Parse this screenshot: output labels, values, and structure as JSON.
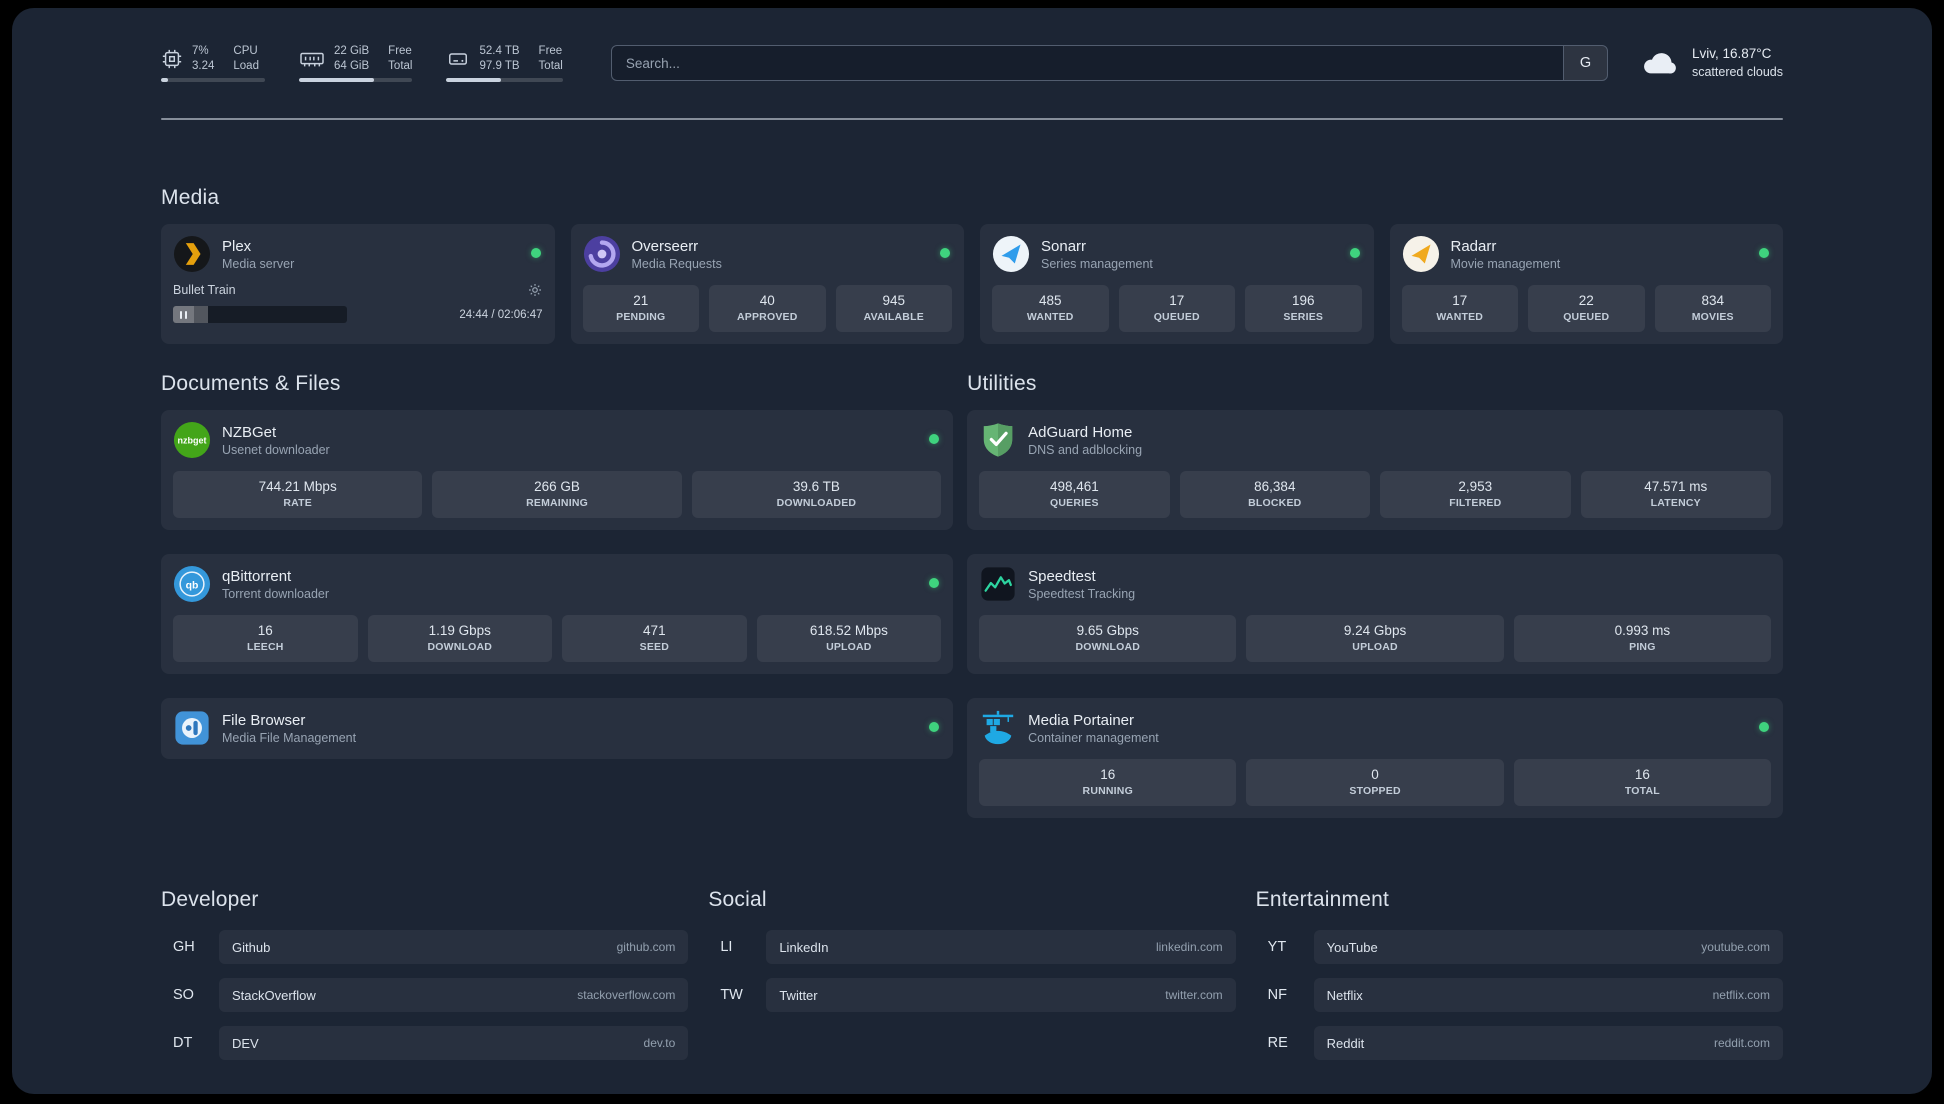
{
  "topbar": {
    "resources": [
      {
        "icon": "cpu-icon",
        "value_top": "7%",
        "value_bottom": "3.24",
        "label_top": "CPU",
        "label_bottom": "Load",
        "progress_pct": 7
      },
      {
        "icon": "memory-icon",
        "value_top": "22 GiB",
        "value_bottom": "64 GiB",
        "label_top": "Free",
        "label_bottom": "Total",
        "progress_pct": 66
      },
      {
        "icon": "disk-icon",
        "value_top": "52.4 TB",
        "value_bottom": "97.9 TB",
        "label_top": "Free",
        "label_bottom": "Total",
        "progress_pct": 47
      }
    ],
    "search": {
      "placeholder": "Search...",
      "provider_label": "G"
    },
    "weather": {
      "location": "Lviv, 16.87°C",
      "condition": "scattered clouds"
    }
  },
  "sections": {
    "media": {
      "title": "Media",
      "cards": [
        {
          "name": "Plex",
          "subtitle": "Media server",
          "status": "online",
          "player": {
            "track": "Bullet Train",
            "time": "24:44 / 02:06:47",
            "progress_pct": 20
          }
        },
        {
          "name": "Overseerr",
          "subtitle": "Media Requests",
          "status": "online",
          "stats": [
            {
              "value": "21",
              "label": "PENDING"
            },
            {
              "value": "40",
              "label": "APPROVED"
            },
            {
              "value": "945",
              "label": "AVAILABLE"
            }
          ]
        },
        {
          "name": "Sonarr",
          "subtitle": "Series management",
          "status": "online",
          "stats": [
            {
              "value": "485",
              "label": "WANTED"
            },
            {
              "value": "17",
              "label": "QUEUED"
            },
            {
              "value": "196",
              "label": "SERIES"
            }
          ]
        },
        {
          "name": "Radarr",
          "subtitle": "Movie management",
          "status": "online",
          "stats": [
            {
              "value": "17",
              "label": "WANTED"
            },
            {
              "value": "22",
              "label": "QUEUED"
            },
            {
              "value": "834",
              "label": "MOVIES"
            }
          ]
        }
      ]
    },
    "documents": {
      "title": "Documents & Files",
      "cards": [
        {
          "name": "NZBGet",
          "subtitle": "Usenet downloader",
          "status": "online",
          "stats": [
            {
              "value": "744.21 Mbps",
              "label": "RATE"
            },
            {
              "value": "266 GB",
              "label": "REMAINING"
            },
            {
              "value": "39.6 TB",
              "label": "DOWNLOADED"
            }
          ]
        },
        {
          "name": "qBittorrent",
          "subtitle": "Torrent downloader",
          "status": "online",
          "stats": [
            {
              "value": "16",
              "label": "LEECH"
            },
            {
              "value": "1.19 Gbps",
              "label": "DOWNLOAD"
            },
            {
              "value": "471",
              "label": "SEED"
            },
            {
              "value": "618.52 Mbps",
              "label": "UPLOAD"
            }
          ]
        },
        {
          "name": "File Browser",
          "subtitle": "Media File Management",
          "status": "online"
        }
      ]
    },
    "utilities": {
      "title": "Utilities",
      "cards": [
        {
          "name": "AdGuard Home",
          "subtitle": "DNS and adblocking",
          "stats": [
            {
              "value": "498,461",
              "label": "QUERIES"
            },
            {
              "value": "86,384",
              "label": "BLOCKED"
            },
            {
              "value": "2,953",
              "label": "FILTERED"
            },
            {
              "value": "47.571 ms",
              "label": "LATENCY"
            }
          ]
        },
        {
          "name": "Speedtest",
          "subtitle": "Speedtest Tracking",
          "stats": [
            {
              "value": "9.65 Gbps",
              "label": "DOWNLOAD"
            },
            {
              "value": "9.24 Gbps",
              "label": "UPLOAD"
            },
            {
              "value": "0.993 ms",
              "label": "PING"
            }
          ]
        },
        {
          "name": "Media Portainer",
          "subtitle": "Container management",
          "status": "online",
          "stats": [
            {
              "value": "16",
              "label": "RUNNING"
            },
            {
              "value": "0",
              "label": "STOPPED"
            },
            {
              "value": "16",
              "label": "TOTAL"
            }
          ]
        }
      ]
    },
    "bookmarks": [
      {
        "title": "Developer",
        "items": [
          {
            "abbr": "GH",
            "name": "Github",
            "url": "github.com"
          },
          {
            "abbr": "SO",
            "name": "StackOverflow",
            "url": "stackoverflow.com"
          },
          {
            "abbr": "DT",
            "name": "DEV",
            "url": "dev.to"
          }
        ]
      },
      {
        "title": "Social",
        "items": [
          {
            "abbr": "LI",
            "name": "LinkedIn",
            "url": "linkedin.com"
          },
          {
            "abbr": "TW",
            "name": "Twitter",
            "url": "twitter.com"
          }
        ]
      },
      {
        "title": "Entertainment",
        "items": [
          {
            "abbr": "YT",
            "name": "YouTube",
            "url": "youtube.com"
          },
          {
            "abbr": "NF",
            "name": "Netflix",
            "url": "netflix.com"
          },
          {
            "abbr": "RE",
            "name": "Reddit",
            "url": "reddit.com"
          }
        ]
      }
    ]
  },
  "colors": {
    "background": "#1c2534",
    "status_online": "#3fd37e",
    "plex_amber": "#e5a00d",
    "sonarr_blue": "#2f9ceb",
    "radarr_amber": "#f0a91e",
    "nzbget_green": "#43a519",
    "qbittorrent_blue": "#3498db",
    "adguard_green": "#66b574",
    "speedtest_green": "#2dd4a0",
    "portainer_blue": "#1fa9e4"
  }
}
